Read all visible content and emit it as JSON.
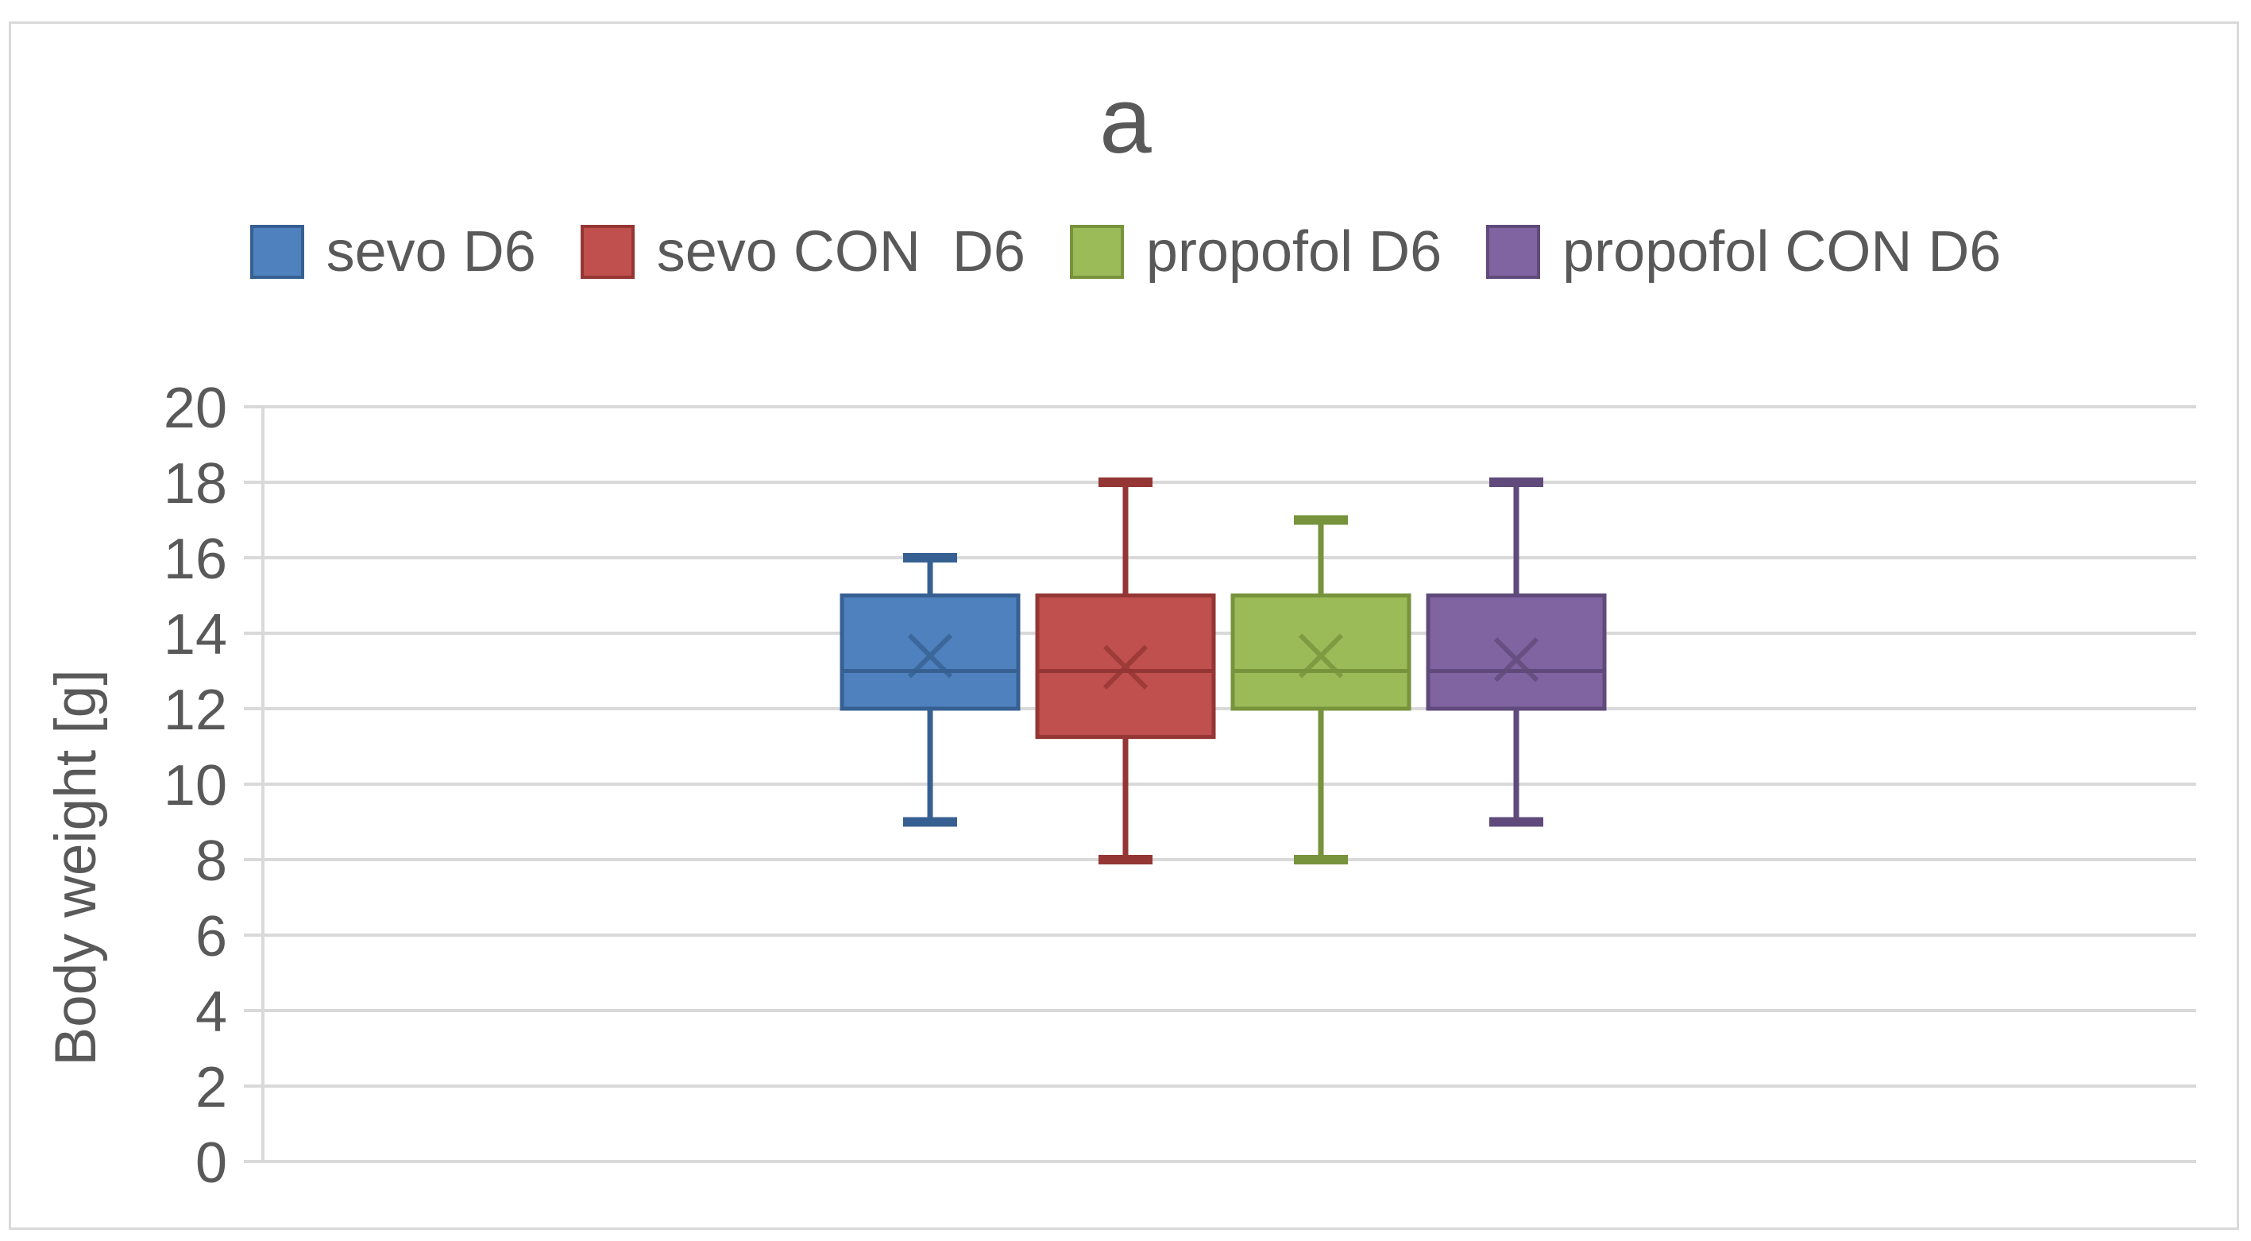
{
  "chart_data": {
    "type": "boxplot",
    "title": "a",
    "ylabel": "Body weight  [g]",
    "xlabel": "",
    "ylim": [
      0,
      20
    ],
    "ytick_step": 2,
    "yticks": [
      0,
      2,
      4,
      6,
      8,
      10,
      12,
      14,
      16,
      18,
      20
    ],
    "grid": "horizontal",
    "legend_position": "top",
    "mean_marker": "x",
    "series": [
      {
        "name": "sevo D6",
        "fill": "#4E81BD",
        "line": "#376092",
        "min": 9,
        "q1": 12,
        "median": 13,
        "q3": 15,
        "max": 16,
        "mean": 13.4
      },
      {
        "name": "sevo CON  D6",
        "fill": "#C0504D",
        "line": "#943634",
        "min": 8,
        "q1": 11.25,
        "median": 13,
        "q3": 15,
        "max": 18,
        "mean": 13.1
      },
      {
        "name": "propofol D6",
        "fill": "#9BBB59",
        "line": "#77933C",
        "min": 8,
        "q1": 12,
        "median": 13,
        "q3": 15,
        "max": 17,
        "mean": 13.4
      },
      {
        "name": "propofol CON D6",
        "fill": "#8064A2",
        "line": "#604A7B",
        "min": 9,
        "q1": 12,
        "median": 13,
        "q3": 15,
        "max": 18,
        "mean": 13.3
      }
    ],
    "colors": {
      "grid": "#D9D9D9",
      "axis": "#D9D9D9",
      "text": "#595959",
      "background": "#FFFFFF",
      "frame_border": "#D9D9D9"
    }
  }
}
